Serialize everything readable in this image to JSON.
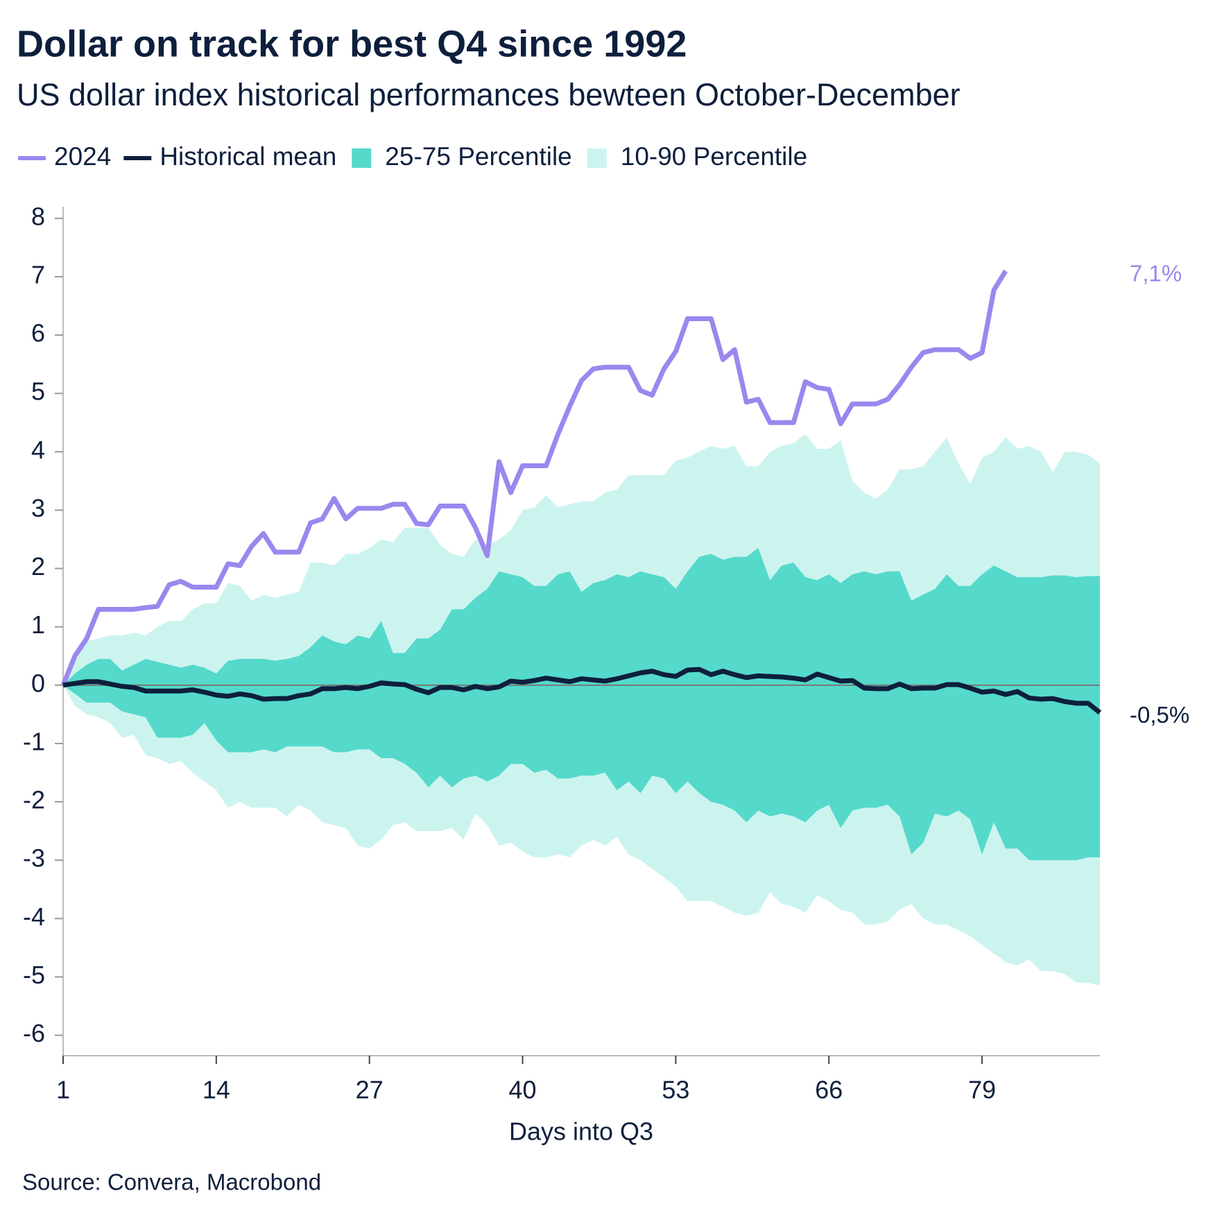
{
  "chart_data": {
    "type": "line",
    "title": "Dollar on track for best Q4 since 1992",
    "subtitle": "US dollar index historical performances bewteen October-December",
    "x_label": "Days into Q3",
    "source": "Source: Convera, Macrobond",
    "x": [
      1,
      2,
      3,
      4,
      5,
      6,
      7,
      8,
      9,
      10,
      11,
      12,
      13,
      14,
      15,
      16,
      17,
      18,
      19,
      20,
      21,
      22,
      23,
      24,
      25,
      26,
      27,
      28,
      29,
      30,
      31,
      32,
      33,
      34,
      35,
      36,
      37,
      38,
      39,
      40,
      41,
      42,
      43,
      44,
      45,
      46,
      47,
      48,
      49,
      50,
      51,
      52,
      53,
      54,
      55,
      56,
      57,
      58,
      59,
      60,
      61,
      62,
      63,
      64,
      65,
      66,
      67,
      68,
      69,
      70,
      71,
      72,
      73,
      74,
      75,
      76,
      77,
      78,
      79,
      80,
      81,
      82,
      83,
      84,
      85,
      86,
      87,
      88,
      89
    ],
    "series": [
      {
        "name": "2024",
        "color": "#9b87ee",
        "end_label": "7,1%",
        "values": [
          0,
          0.5,
          0.8,
          1.3,
          1.3,
          1.3,
          1.3,
          1.33,
          1.35,
          1.72,
          1.78,
          1.68,
          1.68,
          1.68,
          2.08,
          2.05,
          2.38,
          2.6,
          2.28,
          2.28,
          2.28,
          2.78,
          2.85,
          3.2,
          2.85,
          3.03,
          3.03,
          3.03,
          3.1,
          3.1,
          2.77,
          2.75,
          3.07,
          3.07,
          3.07,
          2.7,
          2.22,
          3.83,
          3.3,
          3.76,
          3.76,
          3.76,
          4.3,
          4.78,
          5.22,
          5.42,
          5.45,
          5.45,
          5.45,
          5.05,
          4.97,
          5.42,
          5.72,
          6.28,
          6.28,
          6.28,
          5.58,
          5.75,
          4.85,
          4.9,
          4.5,
          4.5,
          4.5,
          5.2,
          5.1,
          5.07,
          4.48,
          4.82,
          4.82,
          4.82,
          4.9,
          5.15,
          5.45,
          5.7,
          5.75,
          5.75,
          5.75,
          5.6,
          5.7,
          6.77,
          7.1,
          null,
          null,
          null,
          null,
          null,
          null,
          null,
          null
        ]
      },
      {
        "name": "Historical mean",
        "color": "#0d1f3c",
        "end_label": "-0,5%",
        "values": [
          0,
          0.03,
          0.06,
          0.06,
          0.02,
          -0.02,
          -0.04,
          -0.1,
          -0.1,
          -0.1,
          -0.1,
          -0.08,
          -0.12,
          -0.17,
          -0.19,
          -0.15,
          -0.18,
          -0.24,
          -0.23,
          -0.23,
          -0.18,
          -0.15,
          -0.06,
          -0.06,
          -0.04,
          -0.06,
          -0.02,
          0.04,
          0.02,
          0.01,
          -0.07,
          -0.13,
          -0.04,
          -0.04,
          -0.08,
          -0.02,
          -0.06,
          -0.03,
          0.07,
          0.05,
          0.08,
          0.12,
          0.09,
          0.06,
          0.11,
          0.09,
          0.07,
          0.11,
          0.16,
          0.21,
          0.24,
          0.18,
          0.15,
          0.26,
          0.27,
          0.18,
          0.24,
          0.18,
          0.13,
          0.16,
          0.15,
          0.14,
          0.12,
          0.09,
          0.19,
          0.13,
          0.07,
          0.08,
          -0.05,
          -0.06,
          -0.06,
          0.02,
          -0.06,
          -0.05,
          -0.05,
          0.01,
          0.01,
          -0.05,
          -0.12,
          -0.1,
          -0.16,
          -0.11,
          -0.22,
          -0.24,
          -0.23,
          -0.28,
          -0.31,
          -0.31,
          -0.47
        ]
      }
    ],
    "bands": [
      {
        "name": "25-75 Percentile",
        "color": "#55d9cb",
        "upper": [
          0,
          0.2,
          0.35,
          0.45,
          0.45,
          0.25,
          0.35,
          0.45,
          0.4,
          0.35,
          0.3,
          0.35,
          0.3,
          0.2,
          0.42,
          0.45,
          0.45,
          0.45,
          0.42,
          0.45,
          0.5,
          0.65,
          0.85,
          0.75,
          0.7,
          0.85,
          0.8,
          1.1,
          0.55,
          0.55,
          0.8,
          0.8,
          0.95,
          1.3,
          1.3,
          1.5,
          1.65,
          1.95,
          1.9,
          1.85,
          1.7,
          1.7,
          1.9,
          1.95,
          1.6,
          1.75,
          1.8,
          1.9,
          1.85,
          1.95,
          1.9,
          1.85,
          1.65,
          1.95,
          2.2,
          2.25,
          2.15,
          2.2,
          2.2,
          2.35,
          1.8,
          2.05,
          2.1,
          1.85,
          1.8,
          1.9,
          1.75,
          1.9,
          1.95,
          1.9,
          1.95,
          1.95,
          1.45,
          1.55,
          1.65,
          1.9,
          1.7,
          1.7,
          1.9,
          2.05,
          1.95,
          1.85,
          1.85,
          1.85,
          1.88,
          1.88,
          1.85,
          1.87,
          1.87
        ],
        "lower": [
          0,
          -0.15,
          -0.3,
          -0.3,
          -0.3,
          -0.45,
          -0.5,
          -0.55,
          -0.9,
          -0.9,
          -0.9,
          -0.85,
          -0.65,
          -0.95,
          -1.15,
          -1.15,
          -1.15,
          -1.1,
          -1.15,
          -1.05,
          -1.05,
          -1.05,
          -1.05,
          -1.15,
          -1.15,
          -1.1,
          -1.1,
          -1.25,
          -1.25,
          -1.35,
          -1.5,
          -1.75,
          -1.55,
          -1.75,
          -1.6,
          -1.55,
          -1.65,
          -1.55,
          -1.35,
          -1.35,
          -1.5,
          -1.45,
          -1.6,
          -1.6,
          -1.55,
          -1.55,
          -1.5,
          -1.8,
          -1.65,
          -1.85,
          -1.55,
          -1.6,
          -1.85,
          -1.65,
          -1.85,
          -2.0,
          -2.05,
          -2.15,
          -2.35,
          -2.15,
          -2.25,
          -2.2,
          -2.25,
          -2.35,
          -2.15,
          -2.05,
          -2.45,
          -2.15,
          -2.1,
          -2.1,
          -2.05,
          -2.25,
          -2.9,
          -2.7,
          -2.2,
          -2.25,
          -2.15,
          -2.3,
          -2.9,
          -2.35,
          -2.8,
          -2.8,
          -3.0,
          -3.0,
          -3.0,
          -3.0,
          -3.0,
          -2.95,
          -2.95
        ]
      },
      {
        "name": "10-90 Percentile",
        "color": "#ccf4ef",
        "upper": [
          0,
          0.4,
          0.75,
          0.8,
          0.85,
          0.85,
          0.9,
          0.85,
          1.0,
          1.1,
          1.1,
          1.3,
          1.4,
          1.4,
          1.75,
          1.7,
          1.45,
          1.55,
          1.5,
          1.55,
          1.6,
          2.1,
          2.1,
          2.05,
          2.25,
          2.25,
          2.35,
          2.5,
          2.45,
          2.7,
          2.7,
          2.7,
          2.4,
          2.25,
          2.2,
          2.5,
          2.4,
          2.5,
          2.65,
          3.0,
          3.05,
          3.25,
          3.05,
          3.1,
          3.15,
          3.15,
          3.3,
          3.35,
          3.6,
          3.6,
          3.6,
          3.6,
          3.85,
          3.9,
          4.0,
          4.1,
          4.05,
          4.1,
          3.75,
          3.75,
          4.0,
          4.1,
          4.15,
          4.3,
          4.05,
          4.05,
          4.2,
          3.5,
          3.3,
          3.2,
          3.35,
          3.7,
          3.7,
          3.75,
          4.0,
          4.25,
          3.8,
          3.45,
          3.9,
          4.0,
          4.25,
          4.05,
          4.1,
          4.0,
          3.65,
          4.0,
          4.0,
          3.95,
          3.8
        ],
        "lower": [
          0,
          -0.35,
          -0.5,
          -0.55,
          -0.65,
          -0.9,
          -0.85,
          -1.2,
          -1.25,
          -1.35,
          -1.3,
          -1.5,
          -1.65,
          -1.8,
          -2.1,
          -2.0,
          -2.1,
          -2.1,
          -2.1,
          -2.25,
          -2.05,
          -2.15,
          -2.35,
          -2.4,
          -2.45,
          -2.75,
          -2.8,
          -2.65,
          -2.4,
          -2.35,
          -2.5,
          -2.5,
          -2.5,
          -2.45,
          -2.65,
          -2.2,
          -2.4,
          -2.75,
          -2.7,
          -2.85,
          -2.95,
          -2.95,
          -2.9,
          -2.95,
          -2.75,
          -2.65,
          -2.75,
          -2.6,
          -2.9,
          -3.0,
          -3.15,
          -3.3,
          -3.45,
          -3.7,
          -3.7,
          -3.7,
          -3.8,
          -3.9,
          -3.95,
          -3.9,
          -3.55,
          -3.75,
          -3.8,
          -3.9,
          -3.6,
          -3.7,
          -3.85,
          -3.9,
          -4.1,
          -4.1,
          -4.05,
          -3.85,
          -3.75,
          -4.0,
          -4.1,
          -4.1,
          -4.2,
          -4.3,
          -4.45,
          -4.6,
          -4.75,
          -4.8,
          -4.7,
          -4.9,
          -4.9,
          -4.95,
          -5.1,
          -5.1,
          -5.15
        ]
      }
    ],
    "xlim": [
      1,
      89
    ],
    "xticks": [
      1,
      14,
      27,
      40,
      53,
      66,
      79
    ],
    "ylim": [
      -6.35,
      8.2
    ],
    "yticks": [
      -6,
      -5,
      -4,
      -3,
      -2,
      -1,
      0,
      1,
      2,
      3,
      4,
      5,
      6,
      7,
      8
    ]
  }
}
